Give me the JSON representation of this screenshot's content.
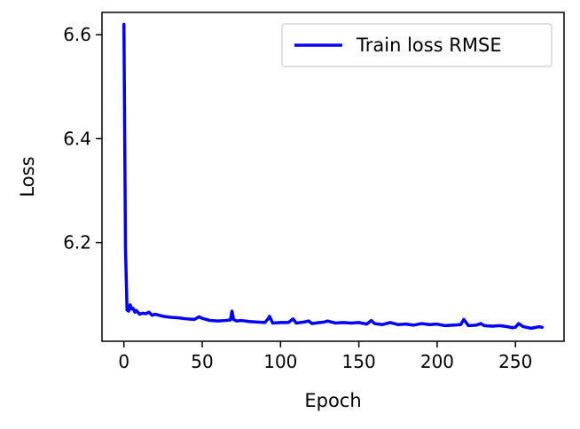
{
  "chart_data": {
    "type": "line",
    "title": "",
    "xlabel": "Epoch",
    "ylabel": "Loss",
    "xlim": [
      -14,
      281
    ],
    "ylim": [
      6.01,
      6.643
    ],
    "xticks": [
      0,
      50,
      100,
      150,
      200,
      250
    ],
    "yticks": [
      6.2,
      6.4,
      6.6
    ],
    "ytick_labels": [
      "6.2",
      "6.4",
      "6.6"
    ],
    "grid": false,
    "legend_position": "top-right",
    "series": [
      {
        "name": "Train loss RMSE",
        "color": "#0000ff",
        "x": [
          0,
          1,
          2,
          3,
          4,
          5,
          6,
          7,
          8,
          10,
          12,
          14,
          16,
          18,
          20,
          25,
          30,
          35,
          40,
          45,
          48,
          50,
          55,
          60,
          65,
          68,
          69,
          70,
          72,
          75,
          80,
          85,
          90,
          92,
          93,
          95,
          100,
          105,
          108,
          110,
          115,
          118,
          120,
          125,
          128,
          130,
          135,
          140,
          145,
          150,
          155,
          158,
          160,
          165,
          170,
          175,
          180,
          185,
          190,
          195,
          200,
          205,
          210,
          215,
          217,
          220,
          225,
          228,
          230,
          235,
          240,
          245,
          248,
          250,
          252,
          255,
          260,
          265,
          267
        ],
        "values": [
          6.62,
          6.19,
          6.07,
          6.068,
          6.08,
          6.072,
          6.073,
          6.066,
          6.069,
          6.062,
          6.064,
          6.063,
          6.066,
          6.06,
          6.062,
          6.058,
          6.056,
          6.055,
          6.053,
          6.052,
          6.057,
          6.054,
          6.05,
          6.049,
          6.05,
          6.051,
          6.068,
          6.052,
          6.049,
          6.05,
          6.048,
          6.047,
          6.046,
          6.053,
          6.058,
          6.045,
          6.046,
          6.046,
          6.053,
          6.045,
          6.047,
          6.049,
          6.044,
          6.046,
          6.047,
          6.049,
          6.045,
          6.046,
          6.045,
          6.046,
          6.043,
          6.05,
          6.044,
          6.042,
          6.046,
          6.042,
          6.043,
          6.041,
          6.044,
          6.042,
          6.043,
          6.04,
          6.041,
          6.042,
          6.052,
          6.04,
          6.041,
          6.044,
          6.04,
          6.039,
          6.04,
          6.038,
          6.036,
          6.037,
          6.044,
          6.038,
          6.035,
          6.038,
          6.037
        ]
      }
    ]
  }
}
